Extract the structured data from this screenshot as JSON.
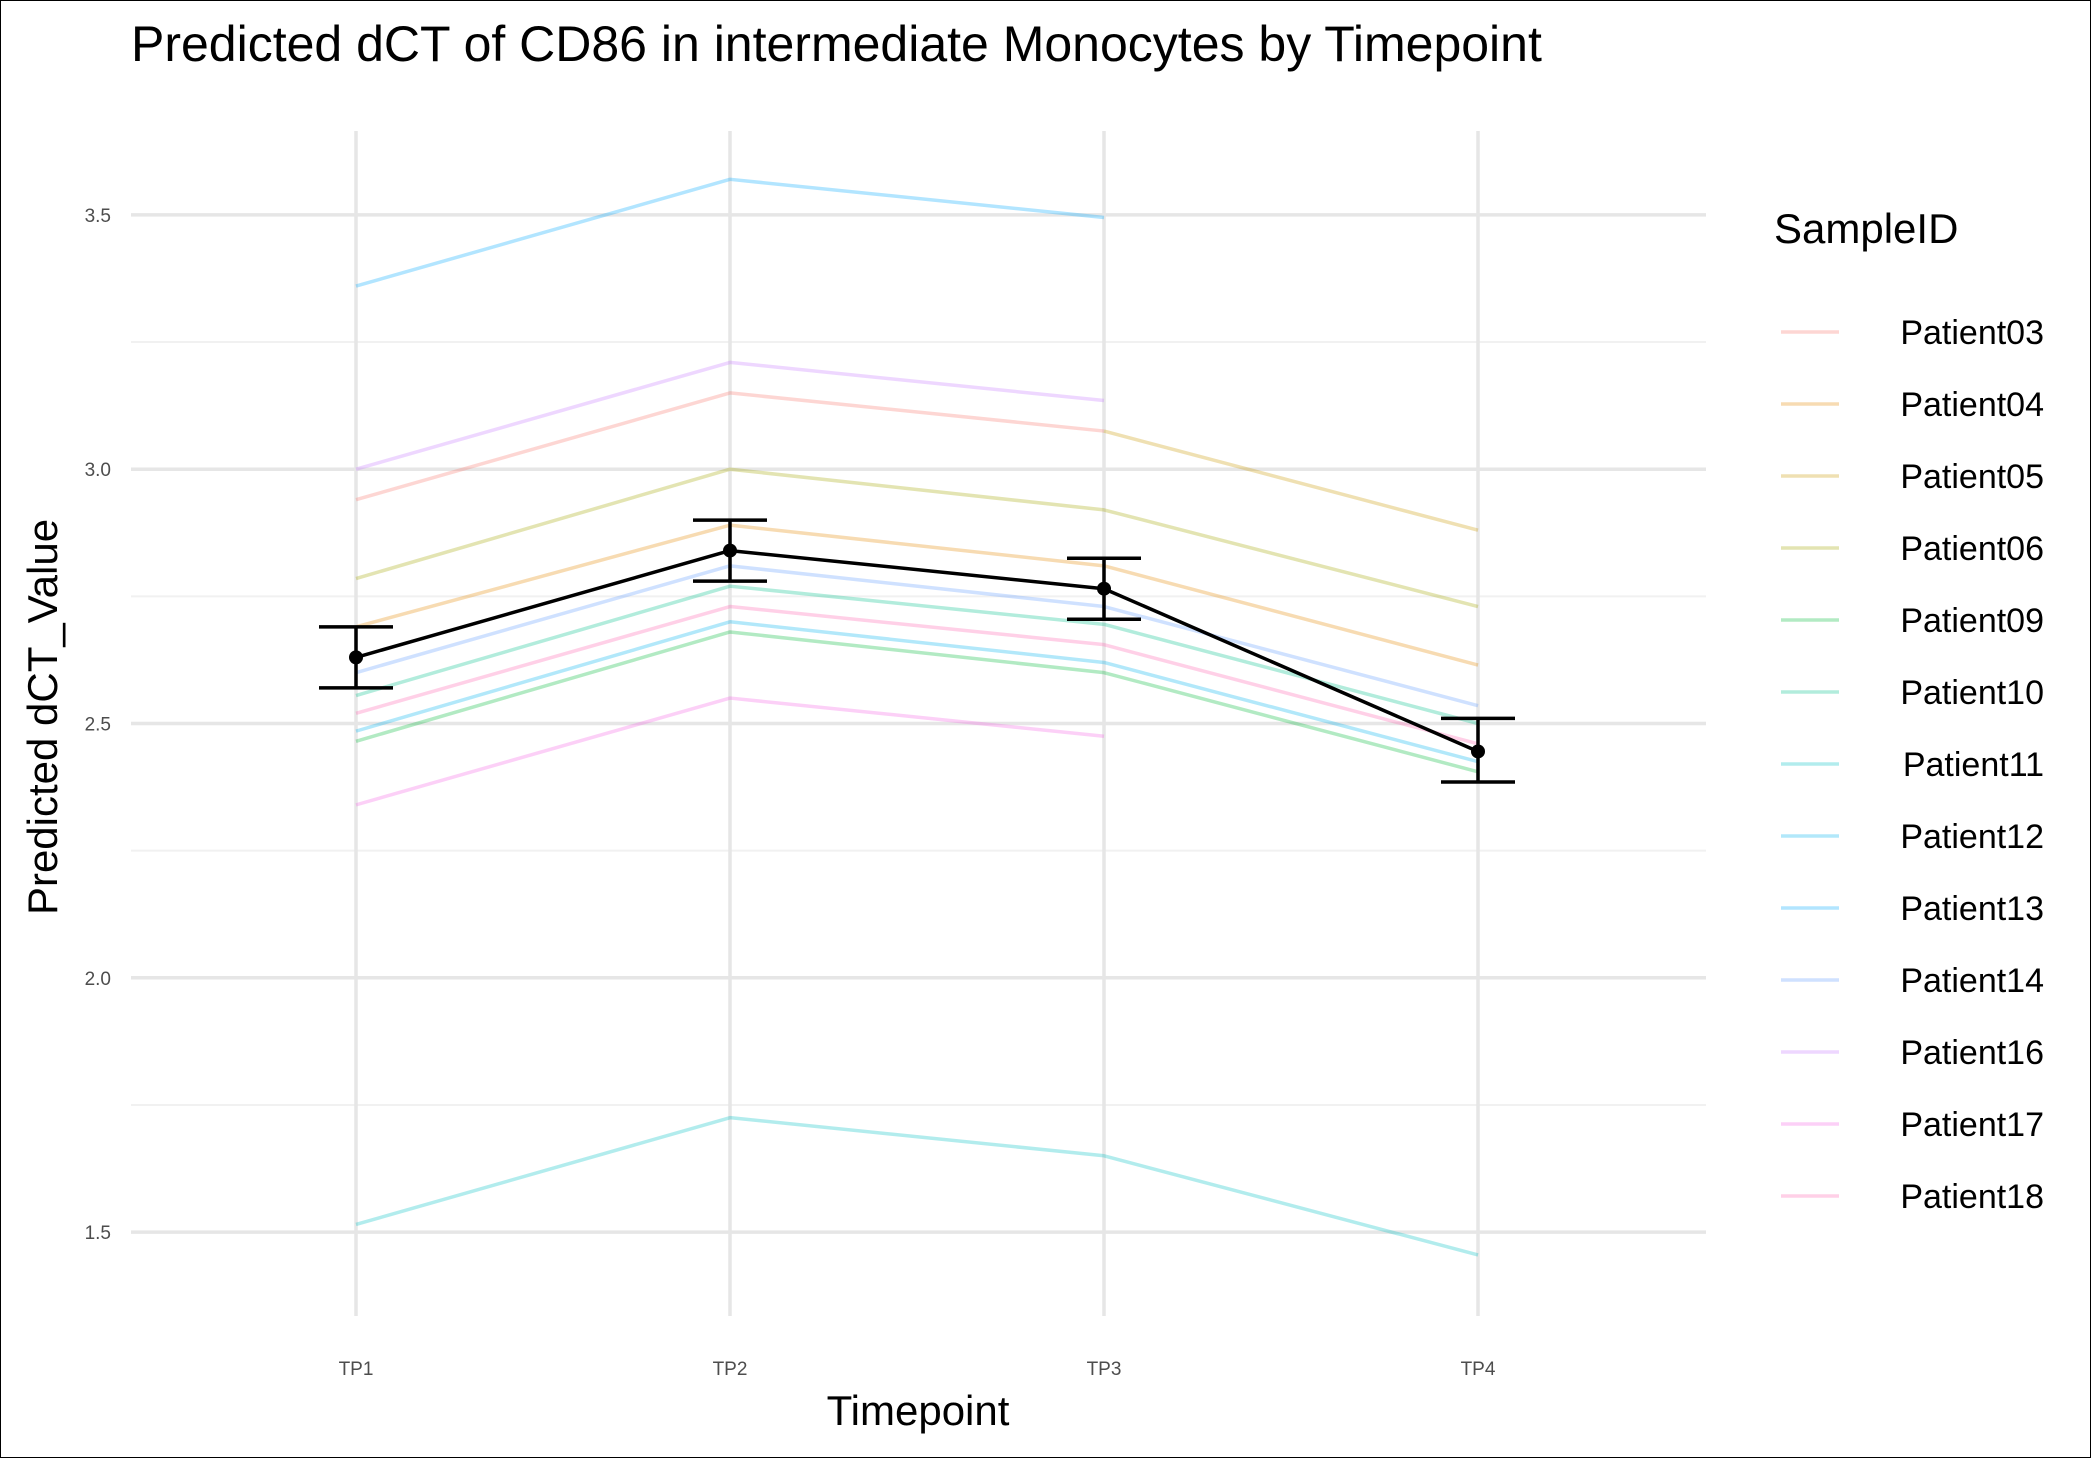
{
  "chart_data": {
    "type": "line",
    "title": "Predicted dCT of  CD86 in  intermediate  Monocytes by Timepoint",
    "xlabel": "Timepoint",
    "ylabel": "Predicted dCT_Value",
    "categories": [
      "TP1",
      "TP2",
      "TP3",
      "TP4"
    ],
    "ylim": [
      1.335,
      3.665
    ],
    "yticks": [
      1.5,
      2.0,
      2.5,
      3.0,
      3.5
    ],
    "ytick_labels": [
      "1.5",
      "2.0",
      "2.5",
      "3.0",
      "3.5"
    ],
    "grid": true,
    "legend": {
      "title": "SampleID",
      "position": "right"
    },
    "series": [
      {
        "name": "Patient03",
        "color": "#F8766D",
        "values": [
          2.94,
          3.15,
          3.075,
          null
        ]
      },
      {
        "name": "Patient04",
        "color": "#E58700",
        "values": [
          2.69,
          2.89,
          2.81,
          2.615
        ]
      },
      {
        "name": "Patient05",
        "color": "#C99800",
        "values": [
          null,
          null,
          3.075,
          2.88
        ]
      },
      {
        "name": "Patient06",
        "color": "#A3A500",
        "values": [
          2.785,
          3.0,
          2.92,
          2.73
        ]
      },
      {
        "name": "Patient09",
        "color": "#00BA38",
        "values": [
          2.465,
          2.68,
          2.6,
          2.405
        ]
      },
      {
        "name": "Patient10",
        "color": "#00C08B",
        "values": [
          2.555,
          2.77,
          2.695,
          2.5
        ]
      },
      {
        "name": "Patient11",
        "color": "#00BFC4",
        "values": [
          1.515,
          1.725,
          1.65,
          1.455
        ]
      },
      {
        "name": "Patient12",
        "color": "#00B4F0",
        "values": [
          2.485,
          2.7,
          2.62,
          2.425
        ]
      },
      {
        "name": "Patient13",
        "color": "#00A9FF",
        "values": [
          3.36,
          3.57,
          3.495,
          null
        ]
      },
      {
        "name": "Patient14",
        "color": "#619CFF",
        "values": [
          2.6,
          2.81,
          2.73,
          2.535
        ]
      },
      {
        "name": "Patient16",
        "color": "#C77CFF",
        "values": [
          3.0,
          3.21,
          3.135,
          null
        ]
      },
      {
        "name": "Patient17",
        "color": "#F564E3",
        "values": [
          2.34,
          2.55,
          2.475,
          null
        ]
      },
      {
        "name": "Patient18",
        "color": "#FF64B0",
        "values": [
          2.52,
          2.73,
          2.655,
          2.46
        ]
      }
    ],
    "mean": {
      "color": "#000000",
      "values": [
        2.63,
        2.84,
        2.765,
        2.445
      ],
      "error_low": [
        2.57,
        2.78,
        2.705,
        2.385
      ],
      "error_high": [
        2.69,
        2.9,
        2.825,
        2.51
      ]
    }
  }
}
